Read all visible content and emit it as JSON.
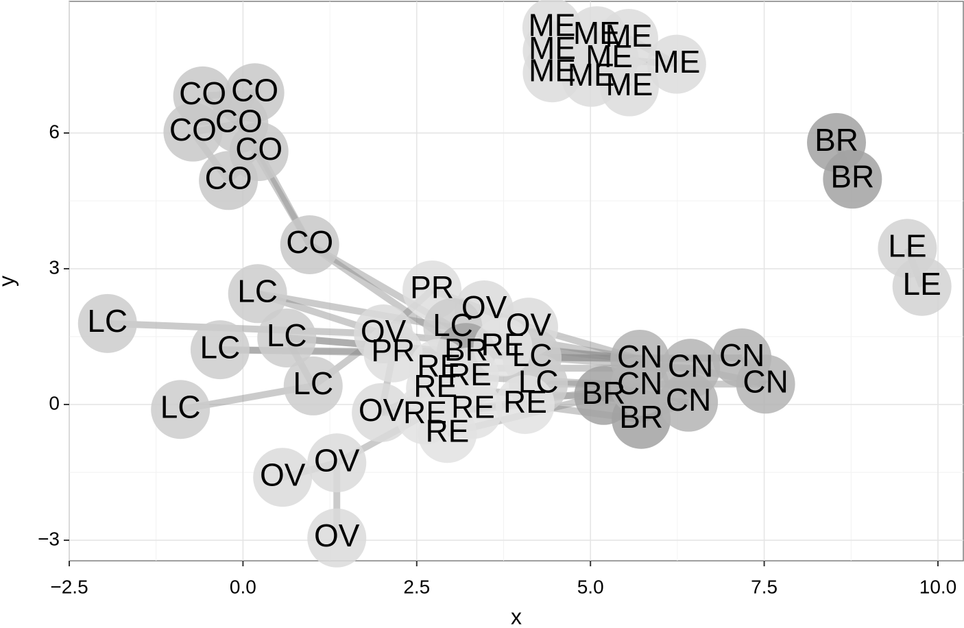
{
  "chart_data": {
    "type": "network",
    "x_label": "x",
    "y_label": "y",
    "xlim": [
      -2.5,
      10.365
    ],
    "ylim": [
      -3.455,
      8.909
    ],
    "xticks": [
      {
        "value": -2.5,
        "label": "−2.5"
      },
      {
        "value": 0,
        "label": "0.0"
      },
      2.5,
      {
        "value": 5,
        "label": "5.0"
      },
      7.5,
      {
        "value": 10,
        "label": "10.0"
      }
    ],
    "yticks": [
      {
        "value": -3,
        "label": "−3"
      },
      0,
      3,
      6
    ],
    "grid": true,
    "x": [
      4.445,
      5.09,
      5.55,
      4.45,
      5.27,
      6.24,
      4.45,
      5.01,
      5.56,
      -0.58,
      0.17,
      -0.06,
      -0.72,
      0.23,
      -0.21,
      0.96,
      8.54,
      8.77,
      9.56,
      9.77,
      -1.95,
      0.21,
      -0.33,
      0.63,
      -0.9,
      1.01,
      2.72,
      2.16,
      2.02,
      3.47,
      4.11,
      1.99,
      0.57,
      1.35,
      1.35,
      3.02,
      4.16,
      4.25,
      3.21,
      5.19,
      5.73,
      3.74,
      2.82,
      3.26,
      2.77,
      2.62,
      3.31,
      2.94,
      4.06,
      5.71,
      6.44,
      7.18,
      7.52,
      5.71,
      6.41
    ],
    "y": [
      8.33,
      8.15,
      8.09,
      7.82,
      7.64,
      7.52,
      7.33,
      7.23,
      7.02,
      6.82,
      6.89,
      6.21,
      6.02,
      5.59,
      4.95,
      3.53,
      5.79,
      4.98,
      3.45,
      2.61,
      1.79,
      2.45,
      1.21,
      1.47,
      -0.11,
      0.41,
      2.53,
      1.14,
      1.56,
      2.09,
      1.71,
      -0.18,
      -1.61,
      -1.29,
      -2.95,
      1.7,
      1.03,
      0.45,
      1.15,
      0.2,
      -0.33,
      1.27,
      0.8,
      0.61,
      0.35,
      -0.23,
      -0.11,
      -0.64,
      0.0,
      1.0,
      0.8,
      1.03,
      0.45,
      0.41,
      0.05
    ],
    "labels": [
      "ME",
      "ME",
      "ME",
      "ME",
      "ME",
      "ME",
      "ME",
      "ME",
      "ME",
      "CO",
      "CO",
      "CO",
      "CO",
      "CO",
      "CO",
      "CO",
      "BR",
      "BR",
      "LE",
      "LE",
      "LC",
      "LC",
      "LC",
      "LC",
      "LC",
      "LC",
      "PR",
      "PR",
      "OV",
      "OV",
      "OV",
      "OV",
      "OV",
      "OV",
      "OV",
      "LC",
      "LC",
      "LC",
      "BR",
      "BR",
      "BR",
      "RE",
      "RE",
      "RE",
      "RE",
      "RE",
      "RE",
      "RE",
      "RE",
      "CN",
      "CN",
      "CN",
      "CN",
      "CN",
      "CN"
    ],
    "colors": {
      "ME": "#dcdcdc",
      "CO": "#c8c8c8",
      "BR": "#a2a2a2",
      "LE": "#d2d2d2",
      "LC": "#cccccc",
      "PR": "#dedede",
      "OV": "#dadada",
      "RE": "#e2e2e2",
      "CN": "#b4b4b4"
    },
    "edge_color": "#8c8c8c",
    "edges": [
      [
        0,
        1
      ],
      [
        1,
        2
      ],
      [
        0,
        3
      ],
      [
        3,
        4
      ],
      [
        4,
        5
      ],
      [
        2,
        5
      ],
      [
        3,
        6
      ],
      [
        6,
        7
      ],
      [
        7,
        8
      ],
      [
        4,
        8
      ],
      [
        1,
        4
      ],
      [
        9,
        10
      ],
      [
        9,
        11
      ],
      [
        10,
        11
      ],
      [
        11,
        12
      ],
      [
        11,
        13
      ],
      [
        12,
        14
      ],
      [
        13,
        14
      ],
      [
        13,
        15
      ],
      [
        11,
        15
      ],
      [
        15,
        38
      ],
      [
        15,
        35
      ],
      [
        16,
        17
      ],
      [
        18,
        19
      ],
      [
        20,
        28
      ],
      [
        21,
        35
      ],
      [
        22,
        27
      ],
      [
        23,
        38
      ],
      [
        23,
        25
      ],
      [
        24,
        25
      ],
      [
        25,
        28
      ],
      [
        21,
        28
      ],
      [
        22,
        38
      ],
      [
        23,
        36
      ],
      [
        26,
        28
      ],
      [
        26,
        29
      ],
      [
        27,
        41
      ],
      [
        27,
        49
      ],
      [
        28,
        49
      ],
      [
        29,
        30
      ],
      [
        30,
        49
      ],
      [
        31,
        44
      ],
      [
        31,
        46
      ],
      [
        32,
        33
      ],
      [
        33,
        34
      ],
      [
        33,
        45
      ],
      [
        31,
        27
      ],
      [
        41,
        49
      ],
      [
        42,
        50
      ],
      [
        43,
        53
      ],
      [
        44,
        54
      ],
      [
        45,
        53
      ],
      [
        46,
        48
      ],
      [
        47,
        39
      ],
      [
        48,
        40
      ],
      [
        35,
        49
      ],
      [
        36,
        51
      ],
      [
        37,
        52
      ],
      [
        38,
        50
      ],
      [
        39,
        53
      ],
      [
        40,
        54
      ],
      [
        49,
        51
      ],
      [
        50,
        52
      ],
      [
        51,
        52
      ],
      [
        53,
        54
      ],
      [
        49,
        53
      ]
    ]
  }
}
